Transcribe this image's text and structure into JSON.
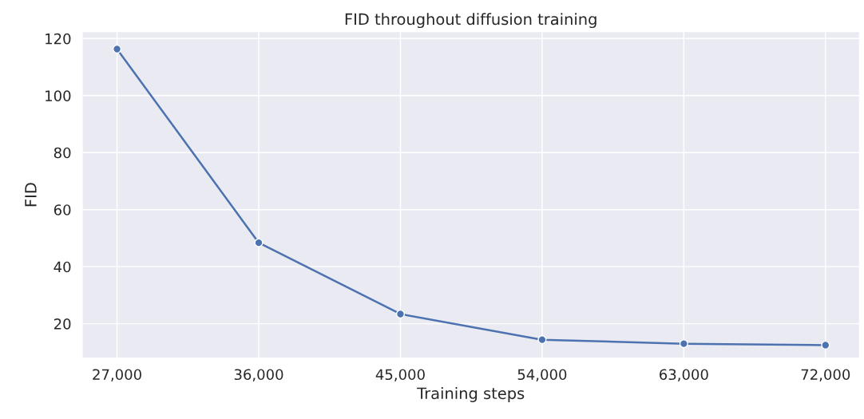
{
  "chart_data": {
    "type": "line",
    "title": "FID throughout diffusion training",
    "xlabel": "Training steps",
    "ylabel": "FID",
    "x": [
      27000,
      36000,
      45000,
      54000,
      63000,
      72000
    ],
    "series": [
      {
        "color": "#4c72b0",
        "values": [
          116.3,
          48.4,
          23.4,
          14.4,
          13.0,
          12.5
        ]
      }
    ],
    "xlim": [
      24780,
      74170
    ],
    "ylim": [
      7.9,
      122.5
    ],
    "xticks": [
      {
        "value": 27000,
        "label": "27,000"
      },
      {
        "value": 36000,
        "label": "36,000"
      },
      {
        "value": 45000,
        "label": "45,000"
      },
      {
        "value": 54000,
        "label": "54,000"
      },
      {
        "value": 63000,
        "label": "63,000"
      },
      {
        "value": 72000,
        "label": "72,000"
      }
    ],
    "yticks": [
      20,
      40,
      60,
      80,
      100,
      120
    ],
    "grid": true,
    "marker": "circle",
    "line_style": "solid"
  }
}
